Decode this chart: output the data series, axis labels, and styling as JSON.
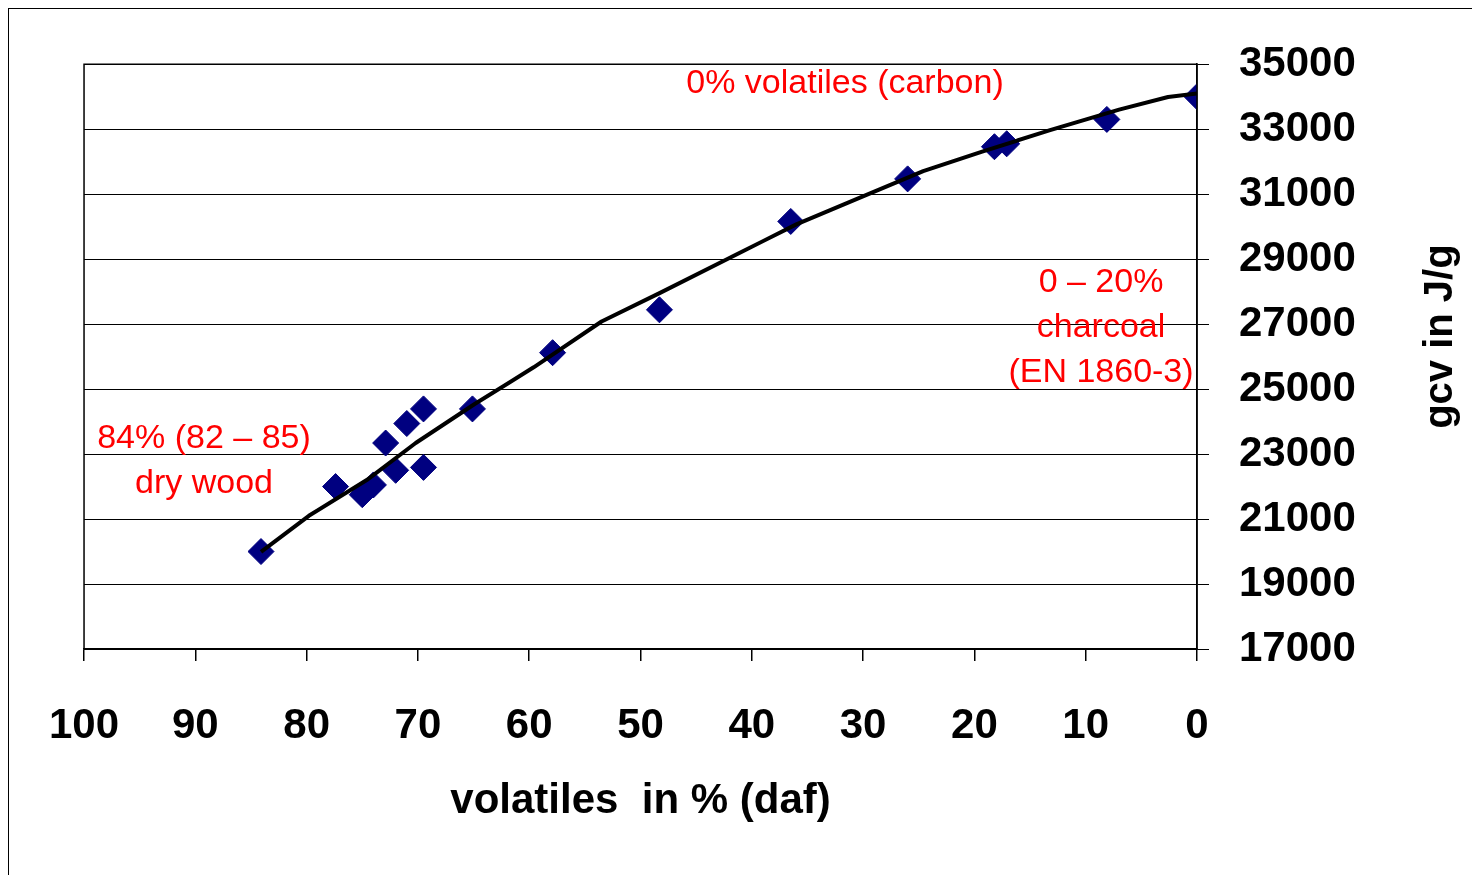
{
  "chart_data": {
    "type": "scatter",
    "xlabel": "volatiles  in % (daf)",
    "ylabel": "gcv in J/g",
    "xlim": [
      100,
      0
    ],
    "xticks": [
      100,
      90,
      80,
      70,
      60,
      50,
      40,
      30,
      20,
      10,
      0
    ],
    "ylim": [
      17000,
      35000
    ],
    "yticks": [
      17000,
      19000,
      21000,
      23000,
      25000,
      27000,
      29000,
      31000,
      33000,
      35000
    ],
    "grid": "y",
    "legend": false,
    "marker": "diamond",
    "series": [
      {
        "color": "#000080",
        "x": [
          84.1,
          77.4,
          75.0,
          74.0,
          72.9,
          72.0,
          71.0,
          69.5,
          69.5,
          65.1,
          57.9,
          48.3,
          36.5,
          26.0,
          18.2,
          17.1,
          8.1,
          0
        ],
        "values": [
          20000,
          22000,
          21750,
          22050,
          23340,
          22500,
          23940,
          24390,
          22590,
          24390,
          26120,
          27440,
          30160,
          31470,
          32460,
          32550,
          33300,
          34000
        ]
      },
      {
        "type": "line",
        "color": "#000000",
        "marker": "none",
        "x": [
          84.1,
          79.8,
          74.6,
          70.2,
          64.9,
          59.6,
          53.5,
          48.2,
          42.1,
          36.0,
          29.8,
          24.6,
          19.3,
          13.2,
          7.0,
          2.6,
          0
        ],
        "values": [
          19990,
          21100,
          22200,
          23340,
          24540,
          25670,
          27080,
          27970,
          29020,
          30070,
          30960,
          31710,
          32310,
          32970,
          33600,
          33990,
          34100
        ]
      }
    ],
    "annotations": [
      "0% volatiles (carbon)",
      "0 – 20%\ncharcoal\n(EN 1860-3)",
      "84% (82 – 85)\ndry wood"
    ]
  }
}
